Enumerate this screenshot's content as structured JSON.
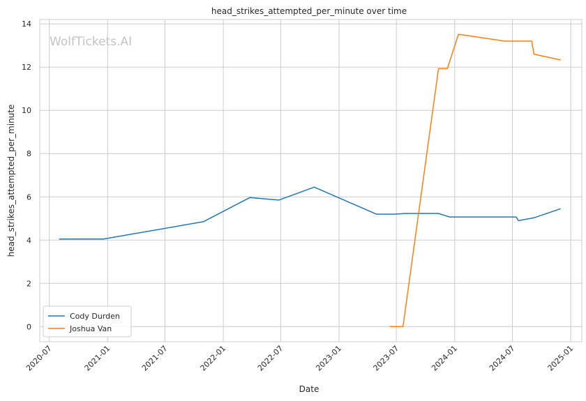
{
  "watermark": "WolfTickets.AI",
  "chart_data": {
    "type": "line",
    "title": "head_strikes_attempted_per_minute over time",
    "xlabel": "Date",
    "ylabel": "head_strikes_attempted_per_minute",
    "x_type": "date",
    "xlim": [
      "2020-06-01",
      "2025-02-05"
    ],
    "ylim": [
      -0.7,
      14.2
    ],
    "x_ticks": [
      "2020-07-01",
      "2021-01-01",
      "2021-07-01",
      "2022-01-01",
      "2022-07-01",
      "2023-01-01",
      "2023-07-01",
      "2024-01-01",
      "2024-07-01",
      "2025-01-01"
    ],
    "x_tick_labels": [
      "2020-07",
      "2021-01",
      "2021-07",
      "2022-01",
      "2022-07",
      "2023-01",
      "2023-07",
      "2024-01",
      "2024-07",
      "2025-01"
    ],
    "y_ticks": [
      0,
      2,
      4,
      6,
      8,
      10,
      12,
      14
    ],
    "y_tick_labels": [
      "0",
      "2",
      "4",
      "6",
      "8",
      "10",
      "12",
      "14"
    ],
    "grid": true,
    "legend_position": "lower-left",
    "series": [
      {
        "name": "Cody Durden",
        "color": "#1f77b4",
        "points": [
          [
            "2020-08-01",
            4.05
          ],
          [
            "2020-12-19",
            4.05
          ],
          [
            "2021-10-30",
            4.85
          ],
          [
            "2022-03-26",
            5.97
          ],
          [
            "2022-06-25",
            5.85
          ],
          [
            "2022-10-15",
            6.45
          ],
          [
            "2023-04-29",
            5.2
          ],
          [
            "2023-06-24",
            5.2
          ],
          [
            "2023-07-29",
            5.23
          ],
          [
            "2023-11-11",
            5.23
          ],
          [
            "2023-12-16",
            5.07
          ],
          [
            "2024-07-13",
            5.07
          ],
          [
            "2024-07-20",
            4.9
          ],
          [
            "2024-09-07",
            5.03
          ],
          [
            "2024-11-30",
            5.45
          ]
        ]
      },
      {
        "name": "Joshua Van",
        "color": "#ff7f0e",
        "points": [
          [
            "2023-06-10",
            0.0
          ],
          [
            "2023-07-22",
            0.0
          ],
          [
            "2023-11-11",
            11.93
          ],
          [
            "2023-12-09",
            11.93
          ],
          [
            "2024-01-13",
            13.52
          ],
          [
            "2024-06-08",
            13.2
          ],
          [
            "2024-08-31",
            13.2
          ],
          [
            "2024-09-07",
            12.6
          ],
          [
            "2024-11-30",
            12.33
          ]
        ]
      }
    ]
  }
}
